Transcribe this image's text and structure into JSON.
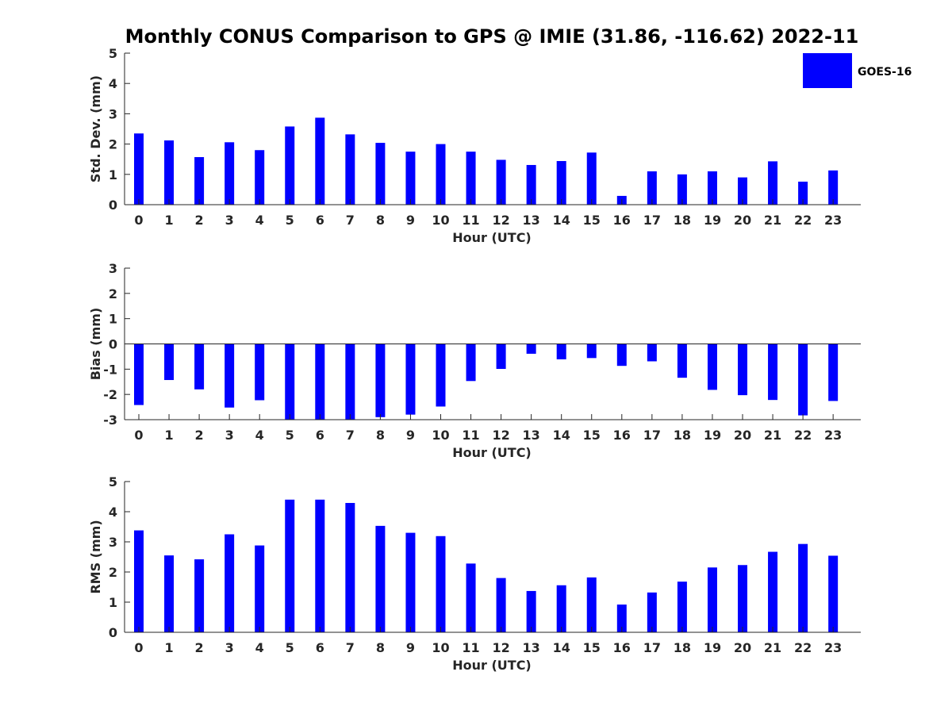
{
  "figure": {
    "title": "Monthly CONUS Comparison to GPS @ IMIE (31.86, -116.62) 2022-11",
    "legend": {
      "label": "GOES-16",
      "color": "#0000ff",
      "placement": "top-right"
    }
  },
  "chart_data": [
    {
      "type": "bar",
      "ylabel": "Std. Dev. (mm)",
      "xlabel": "Hour (UTC)",
      "ylim": [
        0,
        5
      ],
      "yticks": [
        0,
        1,
        2,
        3,
        4,
        5
      ],
      "categories": [
        "0",
        "1",
        "2",
        "3",
        "4",
        "5",
        "6",
        "7",
        "8",
        "9",
        "10",
        "11",
        "12",
        "13",
        "14",
        "15",
        "16",
        "17",
        "18",
        "19",
        "20",
        "21",
        "22",
        "23"
      ],
      "series": [
        {
          "name": "GOES-16",
          "color": "#0000ff",
          "values": [
            2.35,
            2.12,
            1.57,
            2.06,
            1.8,
            2.58,
            2.87,
            2.32,
            2.04,
            1.75,
            2.0,
            1.75,
            1.48,
            1.31,
            1.44,
            1.72,
            0.29,
            1.1,
            1.0,
            1.1,
            0.9,
            1.43,
            0.76,
            1.13
          ]
        }
      ]
    },
    {
      "type": "bar",
      "ylabel": "Bias (mm)",
      "xlabel": "Hour (UTC)",
      "ylim": [
        -3,
        3
      ],
      "yticks": [
        -3,
        -2,
        -1,
        0,
        1,
        2,
        3
      ],
      "categories": [
        "0",
        "1",
        "2",
        "3",
        "4",
        "5",
        "6",
        "7",
        "8",
        "9",
        "10",
        "11",
        "12",
        "13",
        "14",
        "15",
        "16",
        "17",
        "18",
        "19",
        "20",
        "21",
        "22",
        "23"
      ],
      "series": [
        {
          "name": "GOES-16",
          "color": "#0000ff",
          "values": [
            -2.42,
            -1.43,
            -1.8,
            -2.52,
            -2.23,
            -3.0,
            -3.0,
            -3.0,
            -2.9,
            -2.8,
            -2.48,
            -1.47,
            -0.99,
            -0.39,
            -0.61,
            -0.56,
            -0.87,
            -0.69,
            -1.34,
            -1.82,
            -2.03,
            -2.22,
            -2.83,
            -2.26
          ]
        }
      ]
    },
    {
      "type": "bar",
      "ylabel": "RMS (mm)",
      "xlabel": "Hour (UTC)",
      "ylim": [
        0,
        5
      ],
      "yticks": [
        0,
        1,
        2,
        3,
        4,
        5
      ],
      "categories": [
        "0",
        "1",
        "2",
        "3",
        "4",
        "5",
        "6",
        "7",
        "8",
        "9",
        "10",
        "11",
        "12",
        "13",
        "14",
        "15",
        "16",
        "17",
        "18",
        "19",
        "20",
        "21",
        "22",
        "23"
      ],
      "series": [
        {
          "name": "GOES-16",
          "color": "#0000ff",
          "values": [
            3.38,
            2.55,
            2.42,
            3.25,
            2.88,
            4.4,
            4.4,
            4.29,
            3.53,
            3.3,
            3.19,
            2.28,
            1.8,
            1.37,
            1.56,
            1.82,
            0.92,
            1.32,
            1.68,
            2.15,
            2.23,
            2.67,
            2.93,
            2.54
          ]
        }
      ]
    }
  ]
}
